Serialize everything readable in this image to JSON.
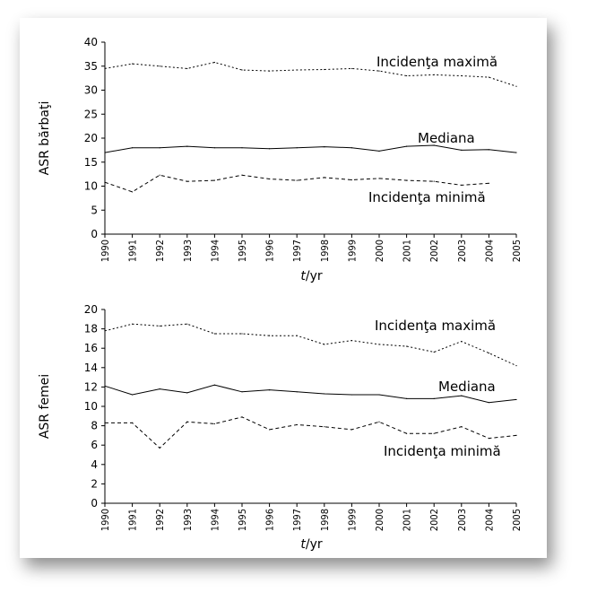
{
  "chart_data": [
    {
      "type": "line",
      "ylabel": "ASR bărbaţi",
      "xlabel_italic": "t",
      "xlabel_rest": "/yr",
      "ylim": [
        0,
        40
      ],
      "yticks": [
        0,
        5,
        10,
        15,
        20,
        25,
        30,
        35,
        40
      ],
      "x": [
        1990,
        1991,
        1992,
        1993,
        1994,
        1995,
        1996,
        1997,
        1998,
        1999,
        2000,
        2001,
        2002,
        2003,
        2004,
        2005
      ],
      "grid": false,
      "series": [
        {
          "name": "Incidenţa maximă",
          "style": "dotted",
          "values": [
            34.5,
            35.5,
            35.0,
            34.5,
            35.8,
            34.2,
            34.0,
            34.2,
            34.3,
            34.5,
            34.0,
            33.0,
            33.2,
            33.0,
            32.7,
            30.8
          ]
        },
        {
          "name": "Mediana",
          "style": "solid",
          "values": [
            17.0,
            18.0,
            18.0,
            18.3,
            18.0,
            18.0,
            17.8,
            18.0,
            18.2,
            18.0,
            17.3,
            18.3,
            18.5,
            17.5,
            17.6,
            17.0
          ]
        },
        {
          "name": "Incidenţa minimă",
          "style": "dashed",
          "values": [
            10.8,
            8.8,
            12.3,
            11.0,
            11.2,
            12.3,
            11.5,
            11.2,
            11.8,
            11.3,
            11.6,
            11.2,
            11.0,
            10.2,
            10.6,
            null
          ]
        }
      ]
    },
    {
      "type": "line",
      "ylabel": "ASR femei",
      "xlabel_italic": "t",
      "xlabel_rest": "/yr",
      "ylim": [
        0,
        20
      ],
      "yticks": [
        0,
        2,
        4,
        6,
        8,
        10,
        12,
        14,
        16,
        18,
        20
      ],
      "x": [
        1990,
        1991,
        1992,
        1993,
        1994,
        1995,
        1996,
        1997,
        1998,
        1999,
        2000,
        2001,
        2002,
        2003,
        2004,
        2005
      ],
      "grid": false,
      "series": [
        {
          "name": "Incidenţa maximă",
          "style": "dotted",
          "values": [
            17.8,
            18.5,
            18.3,
            18.5,
            17.5,
            17.5,
            17.3,
            17.3,
            16.4,
            16.8,
            16.4,
            16.2,
            15.6,
            16.7,
            15.5,
            14.2
          ]
        },
        {
          "name": "Mediana",
          "style": "solid",
          "values": [
            12.1,
            11.2,
            11.8,
            11.4,
            12.2,
            11.5,
            11.7,
            11.5,
            11.3,
            11.2,
            11.2,
            10.8,
            10.8,
            11.1,
            10.4,
            10.7
          ]
        },
        {
          "name": "Incidenţa minimă",
          "style": "dashed",
          "values": [
            8.3,
            8.3,
            5.7,
            8.4,
            8.2,
            8.9,
            7.6,
            8.1,
            7.9,
            7.6,
            8.4,
            7.2,
            7.2,
            7.9,
            6.7,
            7.0
          ]
        }
      ]
    }
  ]
}
